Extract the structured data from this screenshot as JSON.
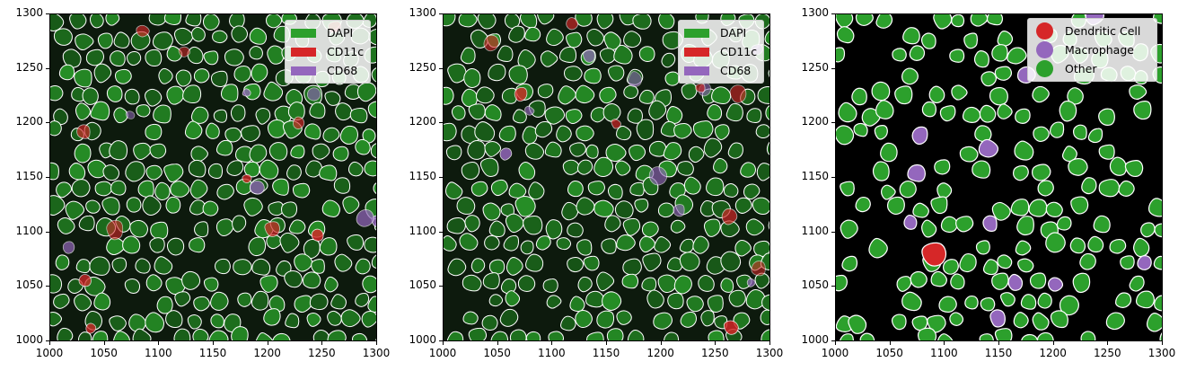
{
  "axes": {
    "x_ticks": [
      "1000",
      "1050",
      "1100",
      "1150",
      "1200",
      "1250",
      "1300"
    ],
    "y_ticks": [
      "1300",
      "1250",
      "1200",
      "1150",
      "1100",
      "1050",
      "1000"
    ],
    "xlim": [
      1000,
      1300
    ],
    "ylim": [
      1000,
      1300
    ]
  },
  "panels": [
    {
      "id": "panel-1",
      "image_kind": "fluorescence-composite",
      "legend": [
        {
          "label": "DAPI",
          "color": "#2ca02c"
        },
        {
          "label": "CD11c",
          "color": "#d62728"
        },
        {
          "label": "CD68",
          "color": "#9467bd"
        }
      ]
    },
    {
      "id": "panel-2",
      "image_kind": "fluorescence-composite",
      "legend": [
        {
          "label": "DAPI",
          "color": "#2ca02c"
        },
        {
          "label": "CD11c",
          "color": "#d62728"
        },
        {
          "label": "CD68",
          "color": "#9467bd"
        }
      ]
    },
    {
      "id": "panel-3",
      "image_kind": "cell-type-segmentation",
      "legend": [
        {
          "label": "Dendritic Cell",
          "color": "#d62728"
        },
        {
          "label": "Macrophage",
          "color": "#9467bd"
        },
        {
          "label": "Other",
          "color": "#2ca02c"
        }
      ]
    }
  ]
}
